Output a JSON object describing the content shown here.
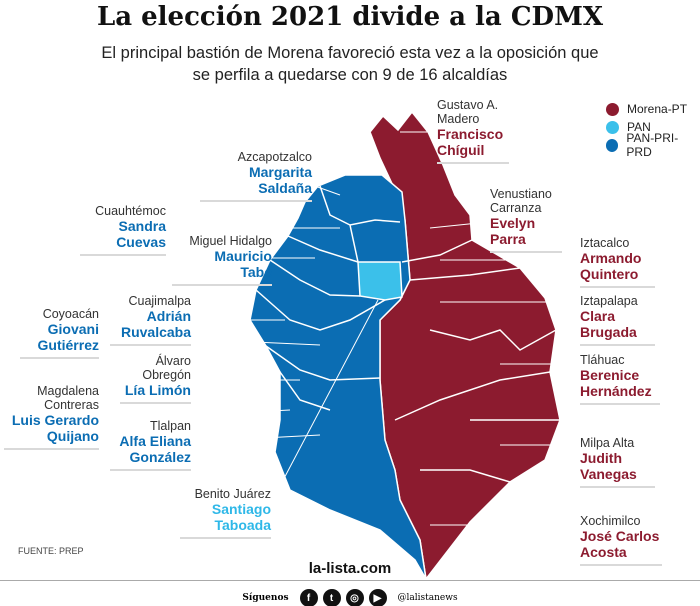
{
  "title": "La elección 2021 divide a la CDMX",
  "subtitle": "El principal bastión de Morena favoreció esta vez a la oposición que se perfila a quedarse con 9 de 16 alcaldías",
  "colors": {
    "morena_pt": "#8c1b2f",
    "pan": "#3bc0ea",
    "pan_pri_prd": "#0b6db3"
  },
  "legend": [
    {
      "label": "Morena-PT",
      "color": "#8c1b2f"
    },
    {
      "label": "PAN",
      "color": "#3bc0ea"
    },
    {
      "label": "PAN-PRI-PRD",
      "color": "#0b6db3"
    }
  ],
  "alcaldias": {
    "azcapotzalco": {
      "name": "Azcapotzalco",
      "winner": "Margarita Saldaña",
      "party": "PAN-PRI-PRD"
    },
    "cuauhtemoc": {
      "name": "Cuauhtémoc",
      "winner": "Sandra Cuevas",
      "party": "PAN-PRI-PRD"
    },
    "miguel_hidalgo": {
      "name": "Miguel Hidalgo",
      "winner": "Mauricio Tabe",
      "party": "PAN-PRI-PRD"
    },
    "cuajimalpa": {
      "name": "Cuajimalpa",
      "winner": "Adrián Ruvalcaba",
      "party": "PAN-PRI-PRD"
    },
    "coyoacan": {
      "name": "Coyoacán",
      "winner": "Giovani Gutiérrez",
      "party": "PAN-PRI-PRD"
    },
    "alvaro_obregon": {
      "name": "Álvaro Obregón",
      "winner": "Lía Limón",
      "party": "PAN-PRI-PRD"
    },
    "magdalena_contreras": {
      "name": "Magdalena Contreras",
      "winner": "Luis Gerardo Quijano",
      "party": "PAN-PRI-PRD"
    },
    "tlalpan": {
      "name": "Tlalpan",
      "winner": "Alfa Eliana González",
      "party": "PAN-PRI-PRD"
    },
    "benito_juarez": {
      "name": "Benito Juárez",
      "winner": "Santiago Taboada",
      "party": "PAN"
    },
    "gam": {
      "name": "Gustavo A. Madero",
      "winner": "Francisco Chíguil",
      "party": "Morena-PT"
    },
    "venustiano_carranza": {
      "name": "Venustiano Carranza",
      "winner": "Evelyn Parra",
      "party": "Morena-PT"
    },
    "iztacalco": {
      "name": "Iztacalco",
      "winner": "Armando Quintero",
      "party": "Morena-PT"
    },
    "iztapalapa": {
      "name": "Iztapalapa",
      "winner": "Clara Brugada",
      "party": "Morena-PT"
    },
    "tlahuac": {
      "name": "Tláhuac",
      "winner": "Berenice Hernández",
      "party": "Morena-PT"
    },
    "milpa_alta": {
      "name": "Milpa Alta",
      "winner": "Judith Vanegas",
      "party": "Morena-PT"
    },
    "xochimilco": {
      "name": "Xochimilco",
      "winner": "José Carlos Acosta",
      "party": "Morena-PT"
    }
  },
  "source": "FUENTE: PREP",
  "site": "la-lista.com",
  "footer": {
    "follow": "Síguenos",
    "handle": "@lalistanews",
    "icons": [
      "facebook-icon",
      "twitter-icon",
      "instagram-icon",
      "youtube-icon"
    ]
  }
}
